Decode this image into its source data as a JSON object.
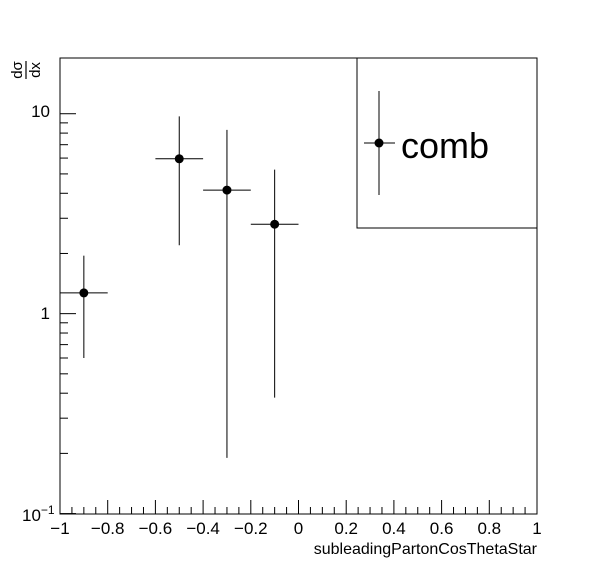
{
  "chart_data": {
    "type": "scatter",
    "xlabel": "subleadingPartonCosThetaStar",
    "ylabel_num": "dσ",
    "ylabel_den": "dx",
    "xlim": [
      -1,
      1
    ],
    "ylim": [
      0.1,
      20
    ],
    "yscale": "log",
    "grid": false,
    "legend_position": "top-right",
    "x_tick_labels": [
      "−1",
      "−0.8",
      "−0.6",
      "−0.4",
      "−0.2",
      "0",
      "0.2",
      "0.4",
      "0.6",
      "0.8",
      "1"
    ],
    "x_tick_values": [
      -1,
      -0.8,
      -0.6,
      -0.4,
      -0.2,
      0,
      0.2,
      0.4,
      0.6,
      0.8,
      1
    ],
    "y_tick_labels": {
      "base": "10",
      "exp": "−1",
      "one": "1",
      "ten": "10"
    },
    "series": [
      {
        "name": "comb",
        "color": "#000000",
        "points": [
          {
            "x": -0.9,
            "xlo": -1.0,
            "xhi": -0.8,
            "y": 1.27,
            "ylo": 0.6,
            "yhi": 1.95
          },
          {
            "x": -0.5,
            "xlo": -0.6,
            "xhi": -0.4,
            "y": 5.95,
            "ylo": 2.2,
            "yhi": 9.7
          },
          {
            "x": -0.3,
            "xlo": -0.4,
            "xhi": -0.2,
            "y": 4.15,
            "ylo": 0.19,
            "yhi": 8.3
          },
          {
            "x": -0.1,
            "xlo": -0.2,
            "xhi": 0.0,
            "y": 2.8,
            "ylo": 0.38,
            "yhi": 5.25
          }
        ]
      }
    ]
  }
}
